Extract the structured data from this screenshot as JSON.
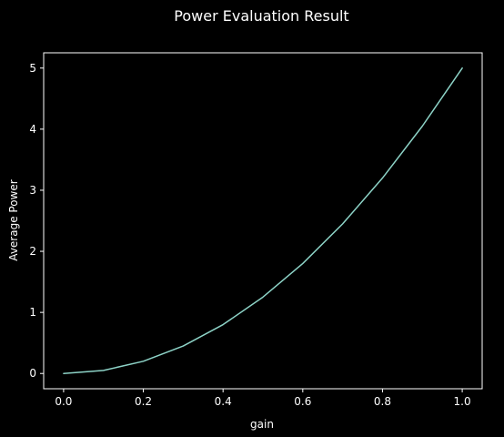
{
  "chart_data": {
    "type": "line",
    "title": "Power Evaluation Result",
    "xlabel": "gain",
    "ylabel": "Average Power",
    "x": [
      0.0,
      0.1,
      0.2,
      0.3,
      0.4,
      0.5,
      0.6,
      0.7,
      0.8,
      0.9,
      1.0
    ],
    "series": [
      {
        "values": [
          0.0,
          0.05,
          0.2,
          0.45,
          0.8,
          1.25,
          1.8,
          2.45,
          3.2,
          4.05,
          5.0
        ]
      }
    ],
    "xlim": [
      -0.05,
      1.05
    ],
    "ylim": [
      -0.25,
      5.25
    ],
    "xticks": [
      0.0,
      0.2,
      0.4,
      0.6,
      0.8,
      1.0
    ],
    "xtick_labels": [
      "0.0",
      "0.2",
      "0.4",
      "0.6",
      "0.8",
      "1.0"
    ],
    "yticks": [
      0,
      1,
      2,
      3,
      4,
      5
    ],
    "ytick_labels": [
      "0",
      "1",
      "2",
      "3",
      "4",
      "5"
    ],
    "grid": false,
    "colors": {
      "background": "#000000",
      "axes": "#ffffff",
      "line": "#8dd3c7",
      "text": "#ffffff"
    }
  }
}
